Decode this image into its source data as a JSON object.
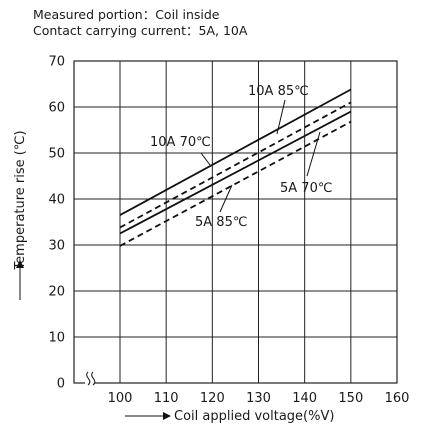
{
  "header": {
    "line1": "Measured portion：Coil inside",
    "line2": "Contact carrying current：5A, 10A"
  },
  "chart_data": {
    "type": "line",
    "xlabel": "Coil applied voltage(%V)",
    "ylabel": "Temperature rise (℃)",
    "xlim": [
      100,
      160
    ],
    "ylim": [
      0,
      70
    ],
    "axis_break": true,
    "x_ticks": [
      100,
      110,
      120,
      130,
      140,
      150,
      160
    ],
    "y_ticks": [
      0,
      10,
      20,
      30,
      40,
      50,
      60,
      70
    ],
    "grid": true,
    "series": [
      {
        "name": "10A 85℃",
        "style": "solid",
        "x": [
          100,
          150
        ],
        "y": [
          36.5,
          63.8
        ]
      },
      {
        "name": "10A 70℃",
        "style": "dashed",
        "x": [
          100,
          150
        ],
        "y": [
          33.8,
          61.0
        ]
      },
      {
        "name": "5A 70℃",
        "style": "solid",
        "x": [
          100,
          150
        ],
        "y": [
          32.5,
          59.0
        ]
      },
      {
        "name": "5A 85℃",
        "style": "dashed",
        "x": [
          100,
          150
        ],
        "y": [
          29.8,
          56.8
        ]
      }
    ]
  }
}
